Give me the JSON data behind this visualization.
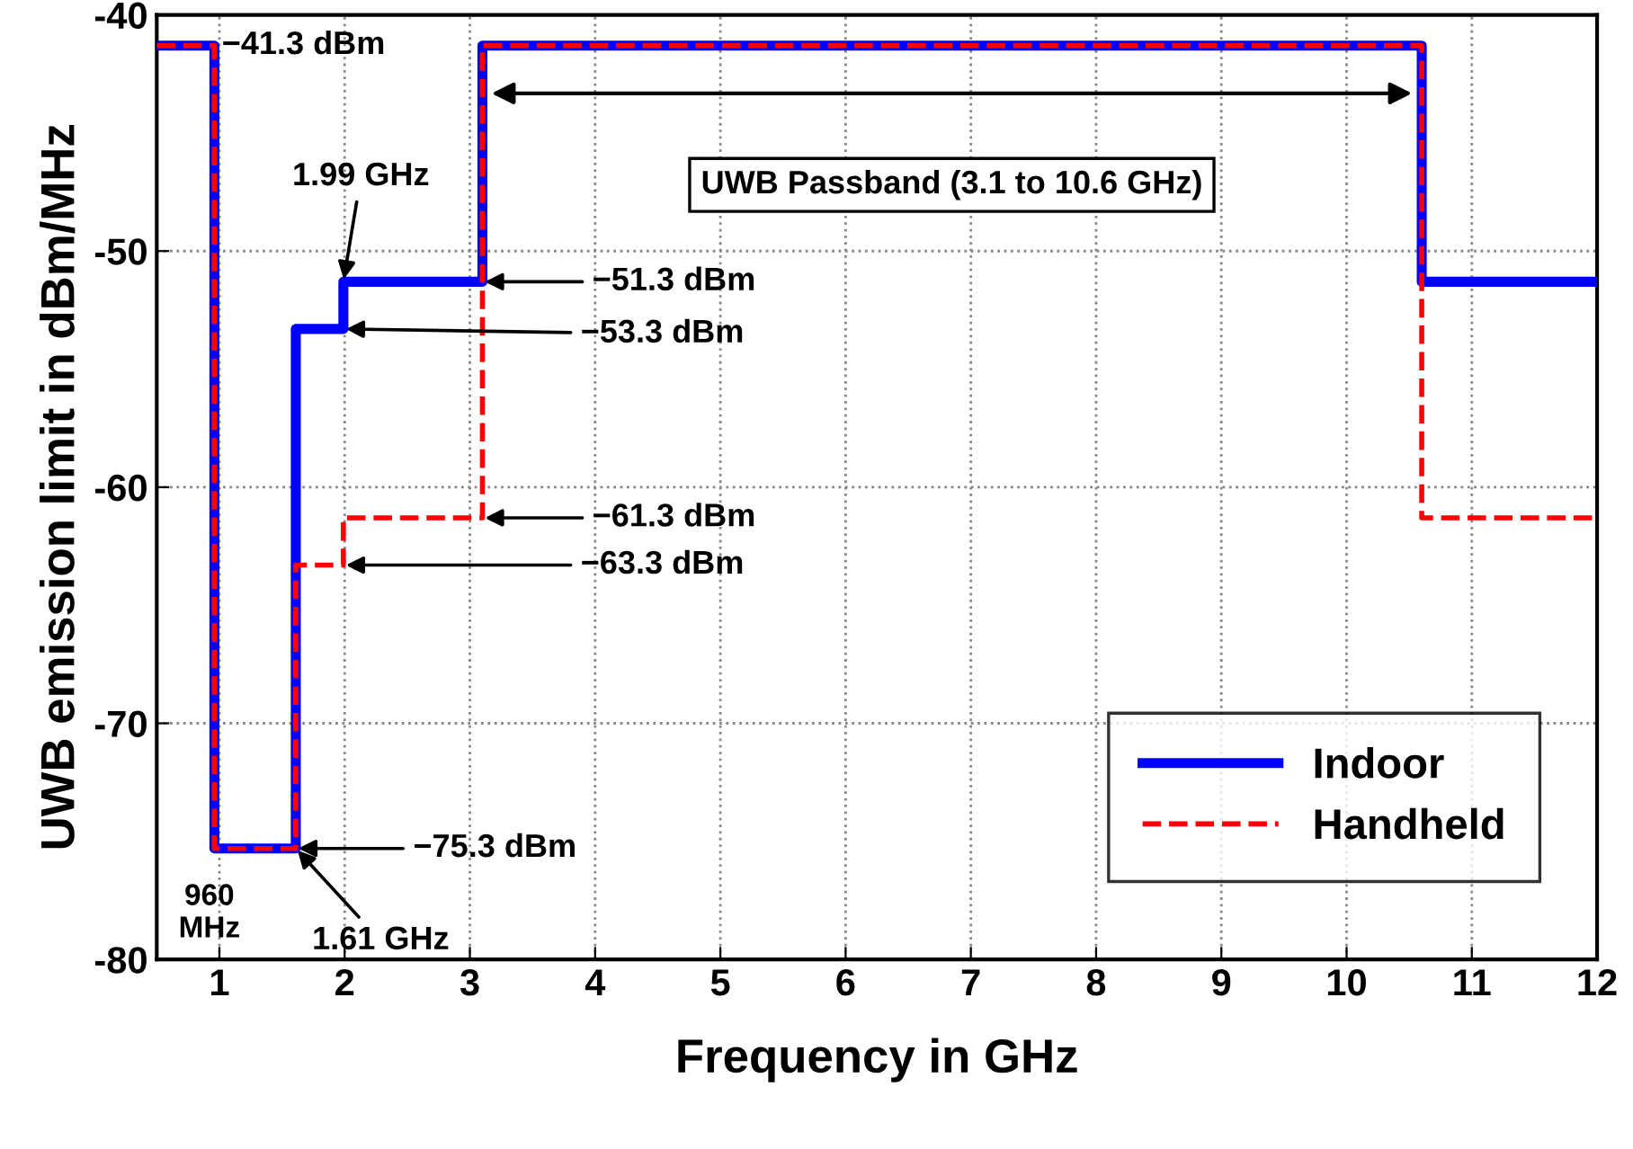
{
  "chart_data": {
    "type": "step",
    "xlabel": "Frequency in GHz",
    "ylabel": "UWB emission limit in dBm/MHz",
    "x": [
      0.5,
      0.96,
      1.61,
      1.99,
      3.1,
      10.6,
      12
    ],
    "series": [
      {
        "name": "Indoor",
        "color": "#0000ff",
        "line_style": "solid",
        "values": [
          -41.3,
          -75.3,
          -53.3,
          -51.3,
          -41.3,
          -51.3,
          -51.3
        ]
      },
      {
        "name": "Handheld",
        "color": "#ff0000",
        "line_style": "dashed",
        "values": [
          -41.3,
          -75.3,
          -63.3,
          -61.3,
          -41.3,
          -61.3,
          -61.3
        ]
      }
    ],
    "xlim": [
      0.5,
      12
    ],
    "xticks": [
      1,
      2,
      3,
      4,
      5,
      6,
      7,
      8,
      9,
      10,
      11,
      12
    ],
    "ylim": [
      -80,
      -40
    ],
    "yticks": [
      -80,
      -70,
      -60,
      -50,
      -40
    ],
    "grid": true,
    "legend": "bottom right",
    "marker": "none",
    "annotations": [
      "UWB Passband (3.1 to 10.6 GHz)",
      {
        "text": "−41.3 dBm",
        "x": 0.96,
        "y": -41.3
      },
      {
        "text": "1.99 GHz",
        "x": 1.99,
        "y": -51.3
      },
      {
        "text": "−51.3 dBm",
        "x": 3.1,
        "y": -51.3
      },
      {
        "text": "−53.3 dBm",
        "x": 1.99,
        "y": -53.3
      },
      {
        "text": "−61.3 dBm",
        "x": 3.1,
        "y": -61.3
      },
      {
        "text": "−63.3 dBm",
        "x": 1.99,
        "y": -63.3
      },
      {
        "text": "−75.3 dBm",
        "x": 1.61,
        "y": -75.3
      },
      {
        "text": "1.61 GHz",
        "x": 1.61,
        "y": -75.3
      },
      {
        "text": "960\nMHz",
        "x": 0.96,
        "y": -75.3
      }
    ]
  }
}
